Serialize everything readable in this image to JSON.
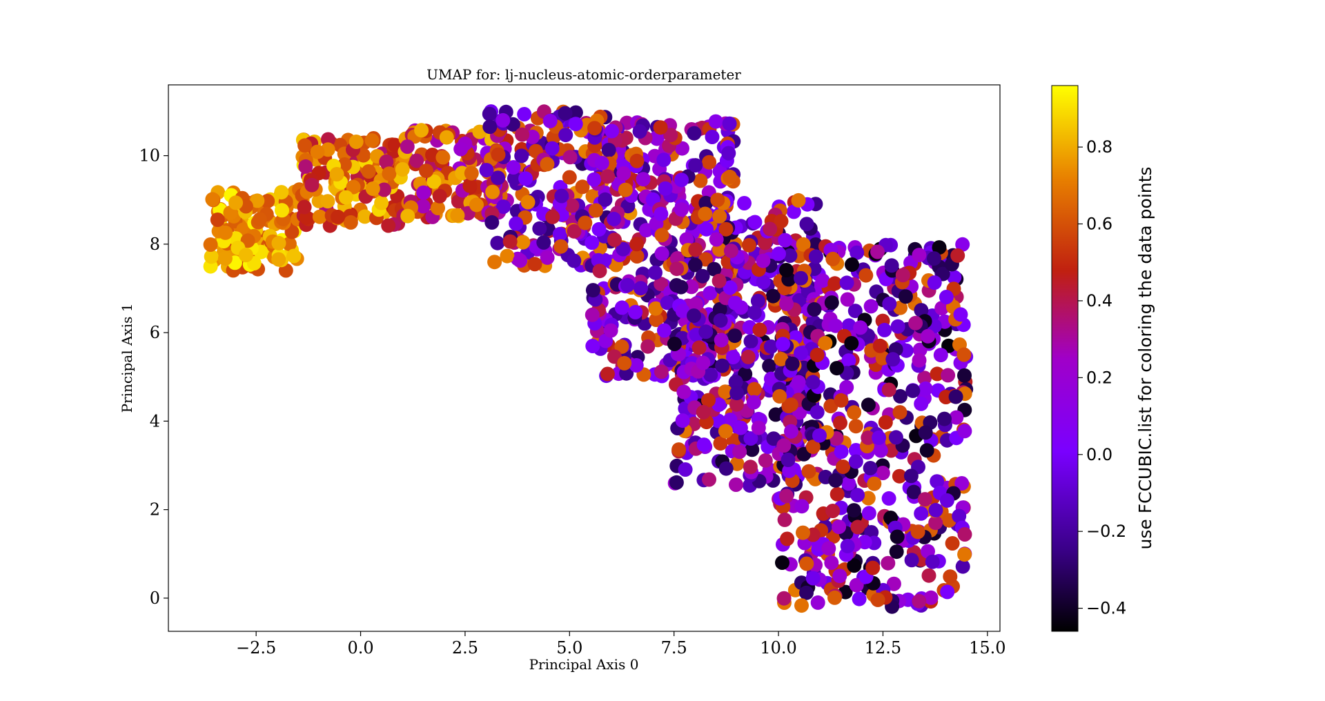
{
  "chart_data": {
    "type": "scatter",
    "title": "UMAP for: lj-nucleus-atomic-orderparameter",
    "xlabel": "Principal Axis 0",
    "ylabel": "Principal Axis 1",
    "xlim": [
      -4.6,
      15.3
    ],
    "ylim": [
      -0.75,
      11.6
    ],
    "xticks": [
      -2.5,
      0.0,
      2.5,
      5.0,
      7.5,
      10.0,
      12.5,
      15.0
    ],
    "xtick_labels": [
      "−2.5",
      "0.0",
      "2.5",
      "5.0",
      "7.5",
      "10.0",
      "12.5",
      "15.0"
    ],
    "yticks": [
      0,
      2,
      4,
      6,
      8,
      10
    ],
    "ytick_labels": [
      "0",
      "2",
      "4",
      "6",
      "8",
      "10"
    ],
    "grid": false,
    "colorbar": {
      "label": "use FCCUBIC.list for coloring the data points",
      "colormap": "gnuplot",
      "range": [
        -0.46,
        0.96
      ],
      "ticks": [
        -0.4,
        -0.2,
        0.0,
        0.2,
        0.4,
        0.6,
        0.8
      ],
      "tick_labels": [
        "−0.4",
        "−0.2",
        "0.0",
        "0.2",
        "0.4",
        "0.6",
        "0.8"
      ]
    },
    "point_groups": [
      {
        "x_range": [
          -3.6,
          -1.5
        ],
        "y_range": [
          7.4,
          9.2
        ],
        "value_range": [
          0.55,
          0.95
        ],
        "approx_count": 120
      },
      {
        "x_range": [
          -1.5,
          1.0
        ],
        "y_range": [
          8.4,
          10.4
        ],
        "value_range": [
          0.35,
          0.9
        ],
        "approx_count": 140
      },
      {
        "x_range": [
          1.0,
          3.5
        ],
        "y_range": [
          8.6,
          10.6
        ],
        "value_range": [
          0.2,
          0.85
        ],
        "approx_count": 140
      },
      {
        "x_range": [
          3.0,
          6.5
        ],
        "y_range": [
          7.5,
          11.0
        ],
        "value_range": [
          -0.3,
          0.75
        ],
        "approx_count": 220
      },
      {
        "x_range": [
          5.5,
          9.0
        ],
        "y_range": [
          5.0,
          10.8
        ],
        "value_range": [
          -0.3,
          0.7
        ],
        "approx_count": 300
      },
      {
        "x_range": [
          7.5,
          11.0
        ],
        "y_range": [
          2.5,
          9.0
        ],
        "value_range": [
          -0.4,
          0.7
        ],
        "approx_count": 400
      },
      {
        "x_range": [
          10.0,
          14.5
        ],
        "y_range": [
          -0.2,
          8.0
        ],
        "value_range": [
          -0.45,
          0.7
        ],
        "approx_count": 520
      }
    ]
  }
}
